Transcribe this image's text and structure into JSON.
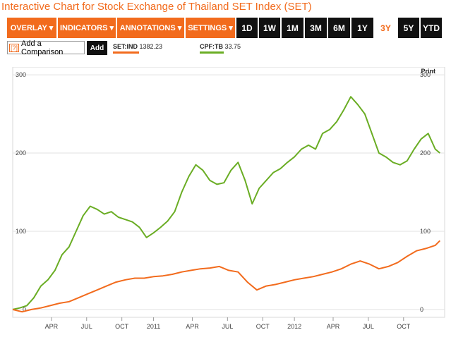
{
  "title": "Interactive Chart for Stock Exchange of Thailand SET Index (SET)",
  "toolbar": {
    "menus": [
      "OVERLAY ▾",
      "INDICATORS ▾",
      "ANNOTATIONS ▾",
      "SETTINGS ▾"
    ],
    "ranges": [
      "1D",
      "1W",
      "1M",
      "3M",
      "6M",
      "1Y",
      "3Y",
      "5Y",
      "YTD"
    ],
    "active_range": "3Y"
  },
  "compare": {
    "q": "[?]",
    "label": "Add a Comparison",
    "add": "Add"
  },
  "legend": [
    {
      "symbol": "SET:IND",
      "value": "1382.23",
      "color": "#f26b1d"
    },
    {
      "symbol": "CPF:TB",
      "value": "33.75",
      "color": "#6aad24"
    }
  ],
  "print_label": "Print",
  "colors": {
    "accent": "#f26b1d",
    "green": "#6aad24",
    "dark": "#111111"
  },
  "chart_data": {
    "type": "line",
    "ylim": [
      -10,
      310
    ],
    "yticks": [
      0,
      100,
      200,
      300
    ],
    "x_labels": [
      "APR",
      "JUL",
      "OCT",
      "2011",
      "APR",
      "JUL",
      "OCT",
      "2012",
      "APR",
      "JUL",
      "OCT"
    ],
    "x_label_positions": [
      1.65,
      3.15,
      4.65,
      6.0,
      7.65,
      9.15,
      10.65,
      12.0,
      13.65,
      15.15,
      16.65
    ],
    "x_range": [
      0,
      18.4
    ],
    "series": [
      {
        "name": "CPF:TB",
        "color": "#6aad24",
        "x": [
          0,
          0.3,
          0.6,
          0.9,
          1.2,
          1.5,
          1.8,
          2.1,
          2.4,
          2.7,
          3.0,
          3.3,
          3.6,
          3.9,
          4.2,
          4.5,
          4.8,
          5.1,
          5.4,
          5.7,
          6.0,
          6.3,
          6.6,
          6.9,
          7.2,
          7.5,
          7.8,
          8.1,
          8.4,
          8.7,
          9.0,
          9.3,
          9.6,
          9.9,
          10.2,
          10.5,
          10.8,
          11.1,
          11.4,
          11.7,
          12.0,
          12.3,
          12.6,
          12.9,
          13.2,
          13.5,
          13.8,
          14.1,
          14.4,
          14.7,
          15.0,
          15.3,
          15.6,
          15.9,
          16.2,
          16.5,
          16.8,
          17.1,
          17.4,
          17.7,
          18.0,
          18.2
        ],
        "values": [
          0,
          2,
          5,
          15,
          30,
          38,
          50,
          70,
          80,
          100,
          120,
          132,
          128,
          122,
          125,
          118,
          115,
          112,
          105,
          92,
          98,
          105,
          113,
          125,
          150,
          170,
          185,
          178,
          165,
          160,
          162,
          178,
          188,
          165,
          135,
          155,
          165,
          175,
          180,
          188,
          195,
          205,
          210,
          205,
          225,
          230,
          240,
          255,
          272,
          262,
          250,
          225,
          200,
          195,
          188,
          185,
          190,
          205,
          218,
          225,
          205,
          200
        ]
      },
      {
        "name": "SET:IND",
        "color": "#f26b1d",
        "x": [
          0,
          0.4,
          0.8,
          1.2,
          1.6,
          2.0,
          2.4,
          2.8,
          3.2,
          3.6,
          4.0,
          4.4,
          4.8,
          5.2,
          5.6,
          6.0,
          6.4,
          6.8,
          7.2,
          7.6,
          8.0,
          8.4,
          8.8,
          9.2,
          9.6,
          10.0,
          10.4,
          10.8,
          11.2,
          11.6,
          12.0,
          12.4,
          12.8,
          13.2,
          13.6,
          14.0,
          14.4,
          14.8,
          15.2,
          15.6,
          16.0,
          16.4,
          16.8,
          17.2,
          17.6,
          18.0,
          18.2
        ],
        "values": [
          0,
          -3,
          0,
          2,
          5,
          8,
          10,
          15,
          20,
          25,
          30,
          35,
          38,
          40,
          40,
          42,
          43,
          45,
          48,
          50,
          52,
          53,
          55,
          50,
          48,
          35,
          25,
          30,
          32,
          35,
          38,
          40,
          42,
          45,
          48,
          52,
          58,
          62,
          58,
          52,
          55,
          60,
          68,
          75,
          78,
          82,
          88
        ]
      }
    ]
  }
}
